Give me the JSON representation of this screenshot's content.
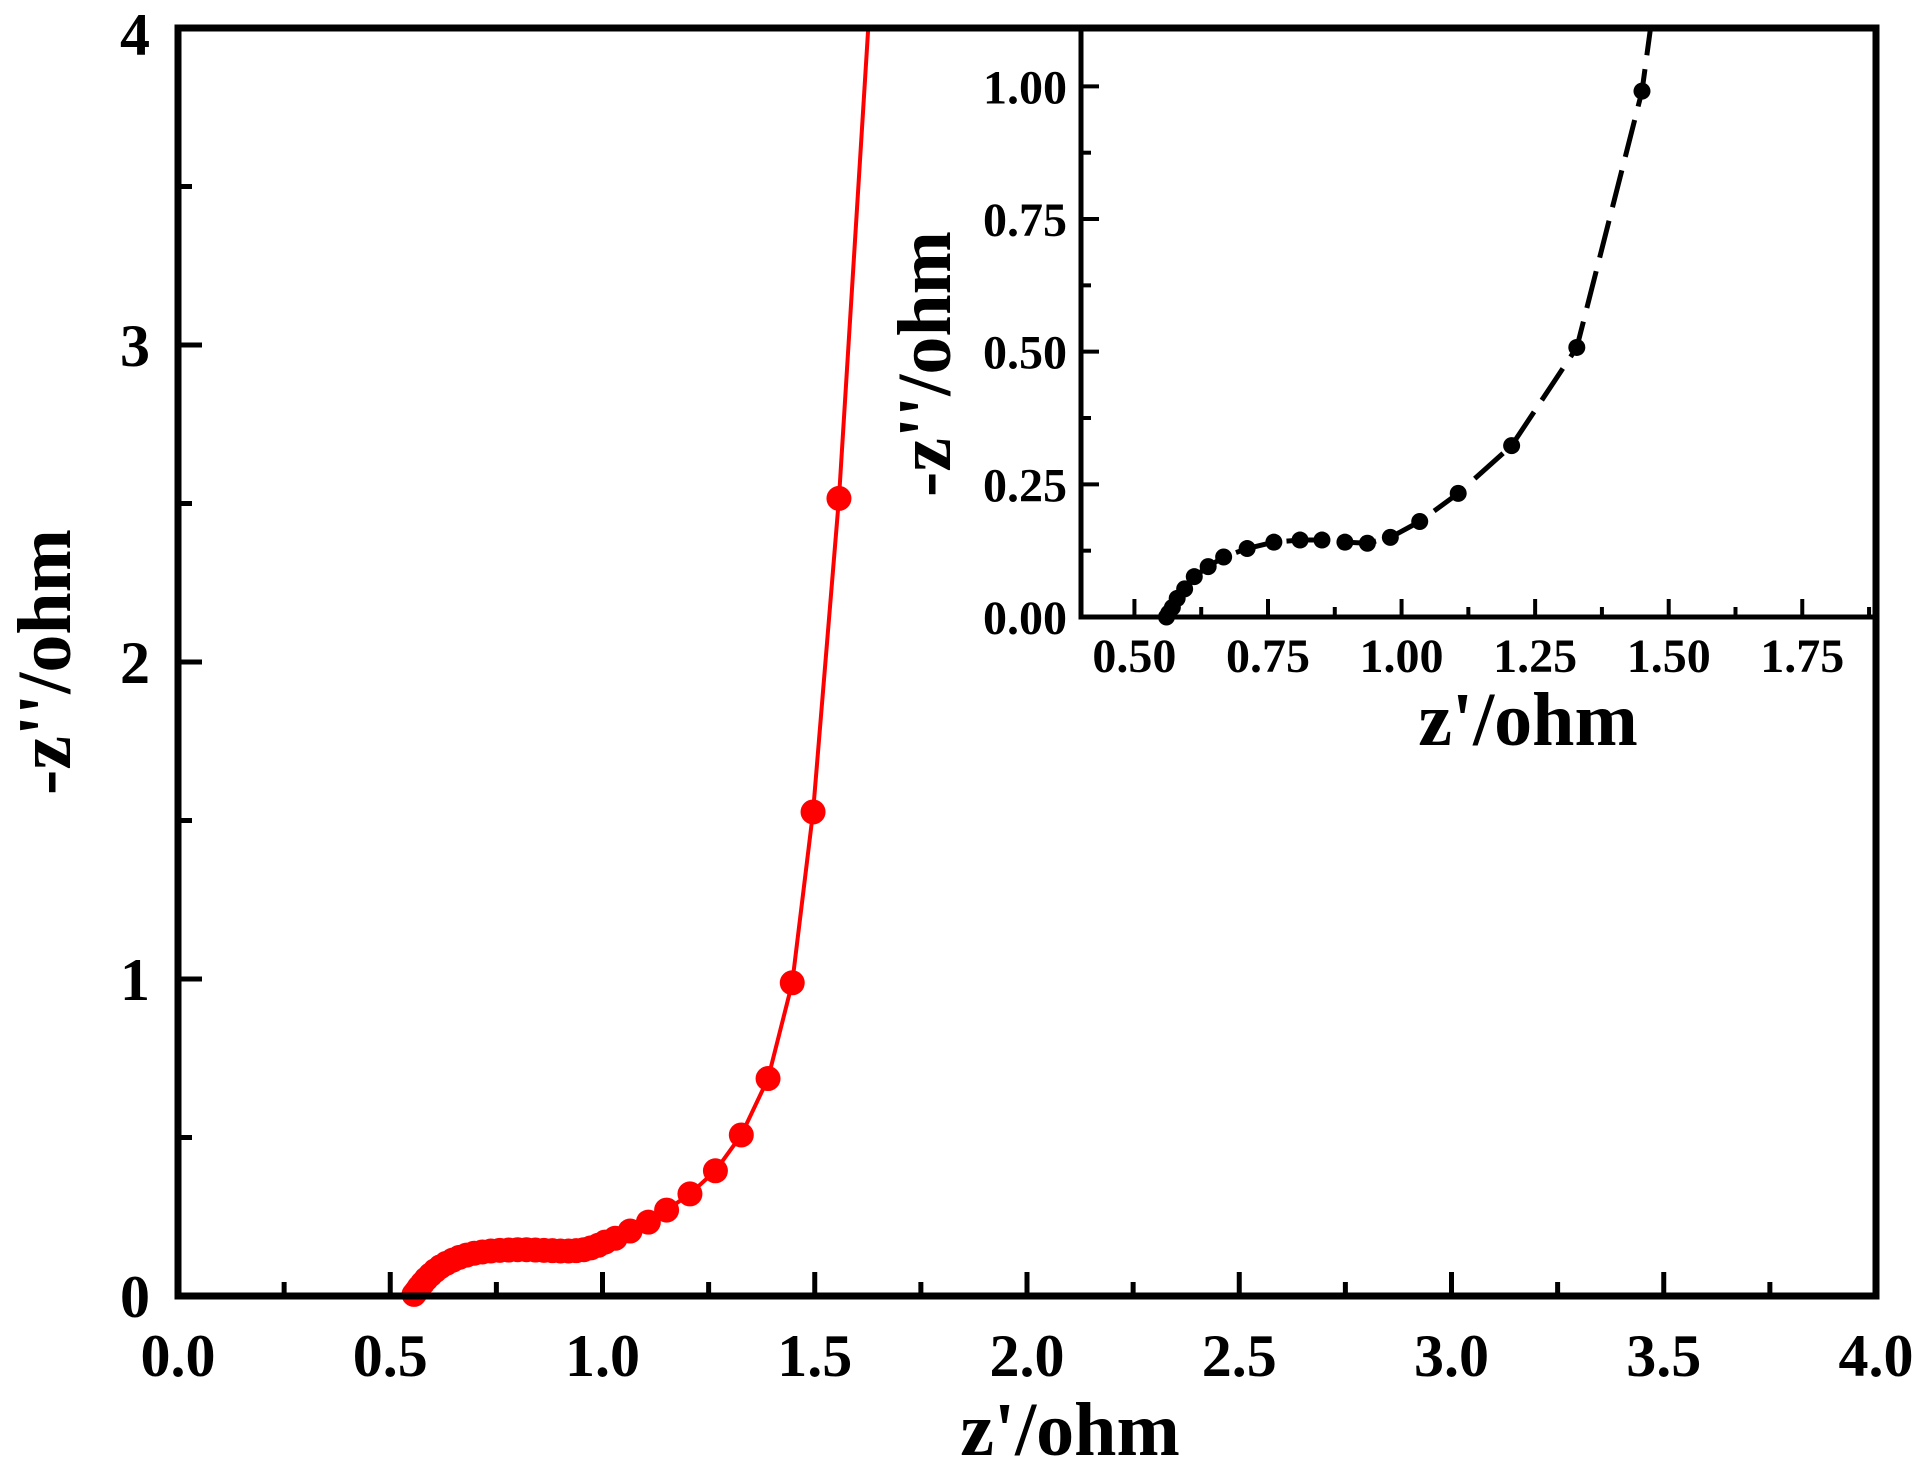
{
  "chart_data": [
    {
      "type": "line",
      "title": "",
      "xlabel": "z'/ohm",
      "ylabel": "-z''/ohm",
      "xlim": [
        0,
        4
      ],
      "ylim": [
        0,
        4
      ],
      "xticks": [
        0,
        0.5,
        1,
        1.5,
        2,
        2.5,
        3,
        3.5,
        4
      ],
      "xtick_labels": [
        "0.0",
        "0.5",
        "1.0",
        "1.5",
        "2.0",
        "2.5",
        "3.0",
        "3.5",
        "4.0"
      ],
      "yticks": [
        0,
        1,
        2,
        3,
        4
      ],
      "ytick_labels": [
        "0",
        "1",
        "2",
        "3",
        "4"
      ],
      "grid": false,
      "series": [
        {
          "color": "#ff0000",
          "line_start": [
            0.532,
            0
          ],
          "line_end": [
            1.626,
            4.0
          ],
          "x": [
            0.556,
            0.562,
            0.568,
            0.576,
            0.585,
            0.595,
            0.606,
            0.618,
            0.632,
            0.647,
            0.663,
            0.68,
            0.698,
            0.717,
            0.737,
            0.758,
            0.779,
            0.8,
            0.821,
            0.842,
            0.862,
            0.882,
            0.901,
            0.92,
            0.938,
            0.956,
            0.973,
            0.99,
            1.006,
            1.03,
            1.065,
            1.108,
            1.151,
            1.206,
            1.266,
            1.327,
            1.39,
            1.447,
            1.496,
            1.557
          ],
          "y": [
            0.005,
            0.015,
            0.027,
            0.04,
            0.054,
            0.067,
            0.08,
            0.092,
            0.103,
            0.113,
            0.122,
            0.129,
            0.135,
            0.139,
            0.142,
            0.144,
            0.145,
            0.146,
            0.146,
            0.145,
            0.144,
            0.143,
            0.142,
            0.142,
            0.143,
            0.146,
            0.152,
            0.16,
            0.17,
            0.182,
            0.205,
            0.233,
            0.271,
            0.322,
            0.395,
            0.508,
            0.686,
            0.988,
            1.527,
            2.516
          ]
        }
      ]
    },
    {
      "type": "line",
      "title": "",
      "xlabel": "z'/ohm",
      "ylabel": "-z''/ohm",
      "xlim": [
        0.4,
        1.888
      ],
      "ylim": [
        0,
        1.11
      ],
      "xticks": [
        0.5,
        0.75,
        1.0,
        1.25,
        1.5,
        1.75
      ],
      "xtick_labels": [
        "0.50",
        "0.75",
        "1.00",
        "1.25",
        "1.50",
        "1.75"
      ],
      "yticks": [
        0,
        0.25,
        0.5,
        0.75,
        1.0
      ],
      "ytick_labels": [
        "0.00",
        "0.25",
        "0.50",
        "0.75",
        "1.00"
      ],
      "grid": false,
      "series": [
        {
          "color": "#000000",
          "line_start": [
            0.548,
            0
          ],
          "line_end": [
            1.466,
            1.11
          ],
          "x": [
            0.56,
            0.564,
            0.571,
            0.58,
            0.594,
            0.612,
            0.638,
            0.667,
            0.711,
            0.761,
            0.81,
            0.851,
            0.894,
            0.936,
            0.979,
            1.034,
            1.106,
            1.206,
            1.328,
            1.45
          ],
          "y": [
            0.0,
            0.007,
            0.018,
            0.035,
            0.053,
            0.076,
            0.095,
            0.113,
            0.129,
            0.141,
            0.145,
            0.145,
            0.141,
            0.139,
            0.15,
            0.18,
            0.233,
            0.323,
            0.508,
            0.991
          ]
        }
      ]
    }
  ]
}
